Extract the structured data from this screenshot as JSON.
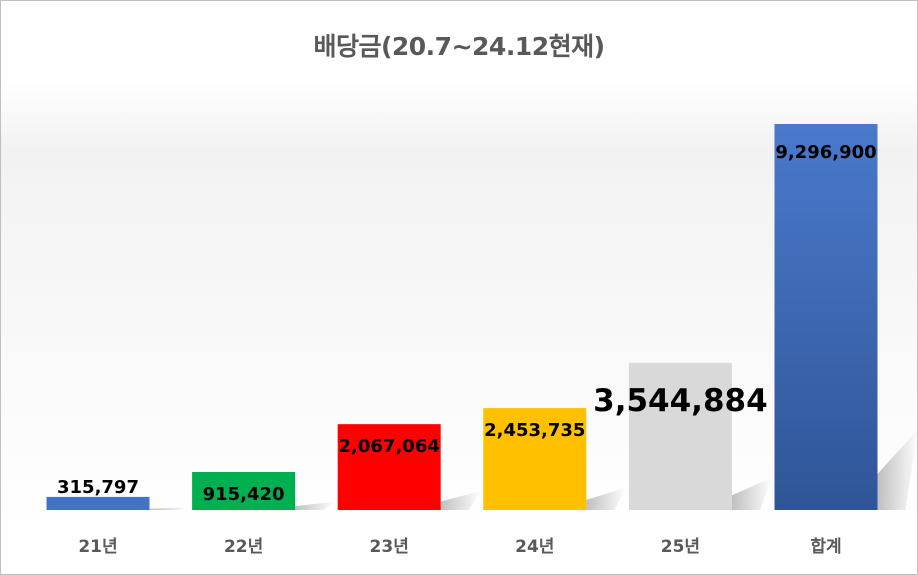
{
  "chart_data": {
    "type": "bar",
    "title": "배당금(20.7~24.12현재)",
    "categories": [
      "21년",
      "22년",
      "23년",
      "24년",
      "25년",
      "합계"
    ],
    "values": [
      315797,
      915420,
      2067064,
      2453735,
      3544884,
      9296900
    ],
    "data_labels": [
      "315,797",
      "915,420",
      "2,067,064",
      "2,453,735",
      "3,544,884",
      "9,296,900"
    ],
    "colors": [
      "#4472c4",
      "#00b050",
      "#ff0000",
      "#ffc000",
      "#d9d9d9",
      "#4472c4"
    ],
    "ylim": [
      0,
      9296900
    ],
    "grid": false,
    "legend": "none",
    "xlabel": "",
    "ylabel": ""
  }
}
